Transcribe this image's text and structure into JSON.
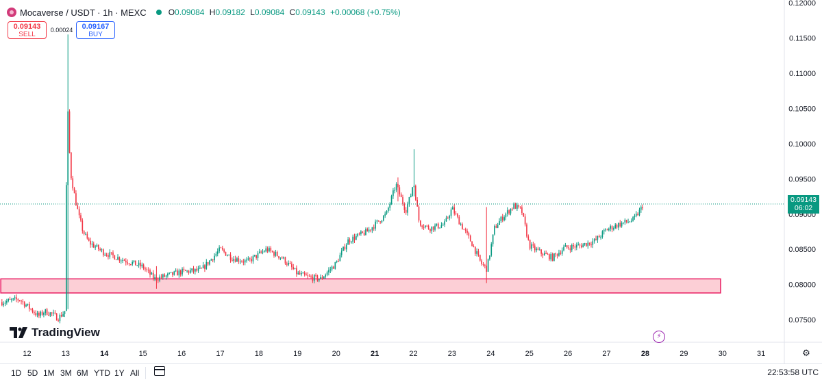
{
  "header": {
    "title": "Mocaverse / USDT · 1h · MEXC",
    "ohlc": [
      {
        "k": "O",
        "v": "0.09084"
      },
      {
        "k": "H",
        "v": "0.09182"
      },
      {
        "k": "L",
        "v": "0.09084"
      },
      {
        "k": "C",
        "v": "0.09143"
      }
    ],
    "change": "+0.00068 (+0.75%)"
  },
  "trade": {
    "sell_price": "0.09143",
    "sell_label": "SELL",
    "spread": "0.00024",
    "buy_price": "0.09167",
    "buy_label": "BUY"
  },
  "brand": "TradingView",
  "last_price": {
    "value": "0.09143",
    "countdown": "06:02"
  },
  "toolbar": {
    "ranges": [
      "1D",
      "5D",
      "1M",
      "3M",
      "6M",
      "YTD",
      "1Y",
      "All"
    ],
    "clock": "22:53:58 UTC"
  },
  "colors": {
    "up": "#089981",
    "down": "#f23645",
    "zone_fill": "#fccfd6",
    "zone_border": "#e91e63"
  },
  "icons": [
    "logo-icon",
    "status-dot-icon",
    "calendar-range-icon",
    "lightning-icon",
    "settings-gear-icon"
  ],
  "chart_data": {
    "type": "candlestick",
    "yticks": [
      0.075,
      0.08,
      0.085,
      0.09,
      0.095,
      0.1,
      0.105,
      0.11,
      0.115,
      0.12
    ],
    "ylim": [
      0.0718,
      0.1204
    ],
    "xticks": [
      {
        "label": "12",
        "day": 12
      },
      {
        "label": "13",
        "day": 13
      },
      {
        "label": "14",
        "day": 14
      },
      {
        "label": "15",
        "day": 15
      },
      {
        "label": "16",
        "day": 16
      },
      {
        "label": "17",
        "day": 17
      },
      {
        "label": "18",
        "day": 18
      },
      {
        "label": "19",
        "day": 19
      },
      {
        "label": "20",
        "day": 20
      },
      {
        "label": "21",
        "day": 21
      },
      {
        "label": "22",
        "day": 22
      },
      {
        "label": "23",
        "day": 23
      },
      {
        "label": "24",
        "day": 24
      },
      {
        "label": "25",
        "day": 25
      },
      {
        "label": "26",
        "day": 26
      },
      {
        "label": "27",
        "day": 27
      },
      {
        "label": "28",
        "day": 28
      },
      {
        "label": "29",
        "day": 29
      },
      {
        "label": "30",
        "day": 30
      },
      {
        "label": "31",
        "day": 31
      }
    ],
    "xlim": [
      11.3,
      31.6
    ],
    "anchors": [
      [
        11.35,
        0.0775
      ],
      [
        11.8,
        0.0779
      ],
      [
        12.1,
        0.0765
      ],
      [
        12.3,
        0.0755
      ],
      [
        12.45,
        0.0762
      ],
      [
        12.65,
        0.0758
      ],
      [
        12.8,
        0.0752
      ],
      [
        12.95,
        0.076
      ],
      [
        13.0,
        0.0765
      ],
      [
        13.03,
        0.108
      ],
      [
        13.12,
        0.096
      ],
      [
        13.25,
        0.092
      ],
      [
        13.35,
        0.0895
      ],
      [
        13.45,
        0.0875
      ],
      [
        13.6,
        0.086
      ],
      [
        14.0,
        0.0845
      ],
      [
        14.5,
        0.0835
      ],
      [
        15.0,
        0.0825
      ],
      [
        15.3,
        0.0808
      ],
      [
        15.6,
        0.0812
      ],
      [
        16.0,
        0.0818
      ],
      [
        16.5,
        0.082
      ],
      [
        17.0,
        0.085
      ],
      [
        17.3,
        0.0838
      ],
      [
        17.7,
        0.0832
      ],
      [
        18.2,
        0.085
      ],
      [
        18.6,
        0.0838
      ],
      [
        19.0,
        0.0815
      ],
      [
        19.3,
        0.081
      ],
      [
        19.6,
        0.0808
      ],
      [
        20.0,
        0.083
      ],
      [
        20.3,
        0.0862
      ],
      [
        20.8,
        0.0875
      ],
      [
        21.3,
        0.09
      ],
      [
        21.55,
        0.0942
      ],
      [
        21.8,
        0.0905
      ],
      [
        21.95,
        0.093
      ],
      [
        22.0,
        0.0948
      ],
      [
        22.15,
        0.0888
      ],
      [
        22.4,
        0.088
      ],
      [
        22.8,
        0.0885
      ],
      [
        23.0,
        0.0908
      ],
      [
        23.2,
        0.0888
      ],
      [
        23.5,
        0.086
      ],
      [
        23.75,
        0.083
      ],
      [
        23.9,
        0.0822
      ],
      [
        24.1,
        0.088
      ],
      [
        24.3,
        0.0895
      ],
      [
        24.6,
        0.0912
      ],
      [
        24.8,
        0.0905
      ],
      [
        25.0,
        0.0855
      ],
      [
        25.3,
        0.0845
      ],
      [
        25.6,
        0.0838
      ],
      [
        25.9,
        0.0852
      ],
      [
        26.3,
        0.0855
      ],
      [
        26.7,
        0.0862
      ],
      [
        27.0,
        0.0878
      ],
      [
        27.3,
        0.0885
      ],
      [
        27.7,
        0.0892
      ],
      [
        27.9,
        0.0908
      ],
      [
        27.95,
        0.09143
      ]
    ],
    "spikes": [
      {
        "day": 13.05,
        "high": 0.1155,
        "low": 0.0765
      },
      {
        "day": 22.0,
        "high": 0.0992,
        "low": 0.0925
      },
      {
        "day": 21.6,
        "high": 0.0952,
        "low": 0.0918
      },
      {
        "day": 23.9,
        "high": 0.091,
        "low": 0.0802
      },
      {
        "day": 15.35,
        "high": 0.0826,
        "low": 0.0794
      }
    ],
    "support_zone": {
      "from": 0.0788,
      "to": 0.0808,
      "x_start": 11.32,
      "x_end": 29.95
    },
    "last_price_line": 0.09143
  }
}
